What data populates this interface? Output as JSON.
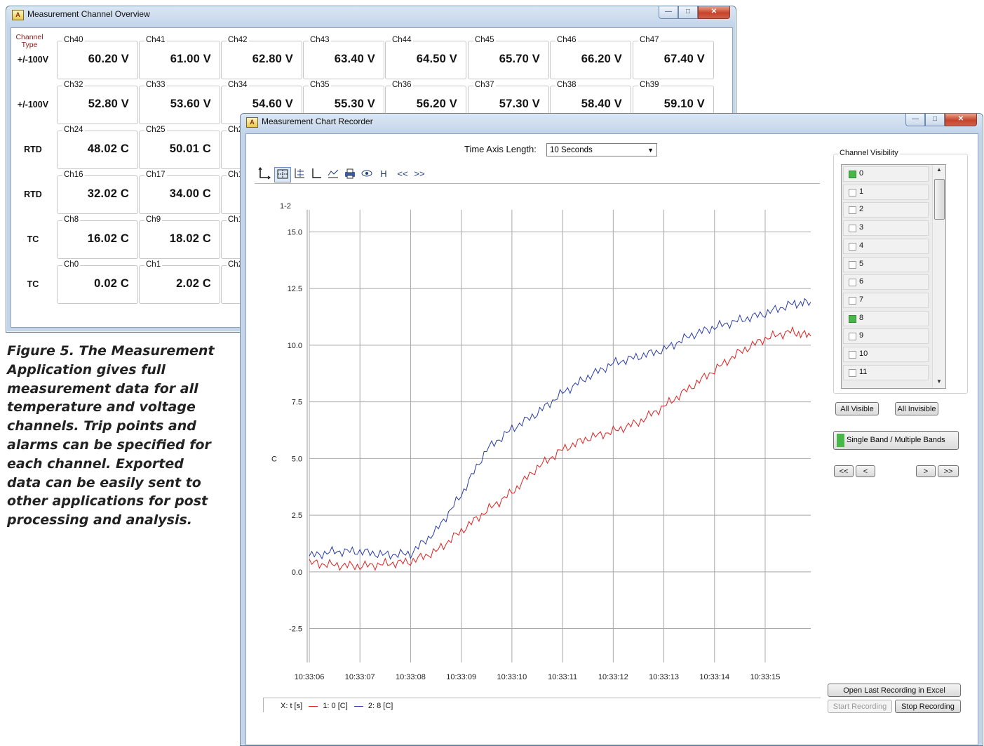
{
  "overview": {
    "title": "Measurement Channel Overview",
    "type_header": "Channel Type",
    "rows": [
      {
        "type": "+/-100V",
        "channels": [
          {
            "label": "Ch40",
            "value": "60.20 V"
          },
          {
            "label": "Ch41",
            "value": "61.00 V"
          },
          {
            "label": "Ch42",
            "value": "62.80 V"
          },
          {
            "label": "Ch43",
            "value": "63.40 V"
          },
          {
            "label": "Ch44",
            "value": "64.50 V"
          },
          {
            "label": "Ch45",
            "value": "65.70 V"
          },
          {
            "label": "Ch46",
            "value": "66.20 V"
          },
          {
            "label": "Ch47",
            "value": "67.40 V"
          }
        ]
      },
      {
        "type": "+/-100V",
        "channels": [
          {
            "label": "Ch32",
            "value": "52.80 V"
          },
          {
            "label": "Ch33",
            "value": "53.60 V"
          },
          {
            "label": "Ch34",
            "value": "54.60 V"
          },
          {
            "label": "Ch35",
            "value": "55.30 V"
          },
          {
            "label": "Ch36",
            "value": "56.20 V"
          },
          {
            "label": "Ch37",
            "value": "57.30 V"
          },
          {
            "label": "Ch38",
            "value": "58.40 V"
          },
          {
            "label": "Ch39",
            "value": "59.10 V"
          }
        ]
      },
      {
        "type": "RTD",
        "channels": [
          {
            "label": "Ch24",
            "value": "48.02 C"
          },
          {
            "label": "Ch25",
            "value": "50.01 C"
          },
          {
            "label": "Ch2",
            "value": ""
          }
        ]
      },
      {
        "type": "RTD",
        "channels": [
          {
            "label": "Ch16",
            "value": "32.02 C"
          },
          {
            "label": "Ch17",
            "value": "34.00 C"
          },
          {
            "label": "Ch1",
            "value": ""
          }
        ]
      },
      {
        "type": "TC",
        "channels": [
          {
            "label": "Ch8",
            "value": "16.02 C"
          },
          {
            "label": "Ch9",
            "value": "18.02 C"
          },
          {
            "label": "Ch1",
            "value": ""
          }
        ]
      },
      {
        "type": "TC",
        "channels": [
          {
            "label": "Ch0",
            "value": "0.02 C"
          },
          {
            "label": "Ch1",
            "value": "2.02 C"
          },
          {
            "label": "Ch2",
            "value": ""
          }
        ]
      }
    ]
  },
  "caption": "Figure 5. The Measurement Application gives full measurement data for all temperature and voltage channels. Trip points and alarms can be specified for each channel. Exported data can be easily sent to other applications for post processing and analysis.",
  "recorder": {
    "title": "Measurement Chart Recorder",
    "time_axis_label": "Time Axis Length:",
    "time_axis_value": "10 Seconds",
    "toolbar": {
      "h_label": "H",
      "prev_label": "<<",
      "next_label": ">>"
    },
    "channel_visibility": {
      "title": "Channel Visibility",
      "items": [
        {
          "num": "0",
          "checked": true
        },
        {
          "num": "1",
          "checked": false
        },
        {
          "num": "2",
          "checked": false
        },
        {
          "num": "3",
          "checked": false
        },
        {
          "num": "4",
          "checked": false
        },
        {
          "num": "5",
          "checked": false
        },
        {
          "num": "6",
          "checked": false
        },
        {
          "num": "7",
          "checked": false
        },
        {
          "num": "8",
          "checked": true
        },
        {
          "num": "9",
          "checked": false
        },
        {
          "num": "10",
          "checked": false
        },
        {
          "num": "11",
          "checked": false
        }
      ]
    },
    "all_visible": "All Visible",
    "all_invisible": "All Invisible",
    "band_button": "Single Band / Multiple Bands",
    "nav": {
      "first": "<<",
      "prev": "<",
      "next": ">",
      "last": ">>"
    },
    "open_excel": "Open Last Recording in Excel",
    "start_recording": "Start Recording",
    "stop_recording": "Stop Recording",
    "legend": {
      "x": "X: t [s]",
      "s1": "1: 0 [C]",
      "s2": "2: 8 [C]"
    }
  },
  "chart_data": {
    "type": "line",
    "band_label": "1-2",
    "ylabel": "C",
    "ylim": [
      -4.0,
      15.6
    ],
    "y_ticks": [
      "15.0",
      "12.5",
      "10.0",
      "7.5",
      "5.0",
      "2.5",
      "0.0",
      "-2.5"
    ],
    "x_ticks": [
      "10:33:06",
      "10:33:07",
      "10:33:08",
      "10:33:09",
      "10:33:10",
      "10:33:11",
      "10:33:12",
      "10:33:13",
      "10:33:14",
      "10:33:15"
    ],
    "xlim": [
      "10:33:06",
      "10:33:15.9"
    ],
    "series": [
      {
        "color": "#2a3da8",
        "x": [
          "10:33:06.0",
          "10:33:06.5",
          "10:33:07.0",
          "10:33:07.5",
          "10:33:08.0",
          "10:33:08.5",
          "10:33:09.0",
          "10:33:09.5",
          "10:33:10.0",
          "10:33:10.5",
          "10:33:11.0",
          "10:33:11.5",
          "10:33:12.0",
          "10:33:12.5",
          "10:33:13.0",
          "10:33:13.5",
          "10:33:14.0",
          "10:33:14.5",
          "10:33:15.0",
          "10:33:15.5",
          "10:33:15.9"
        ],
        "y": [
          0.7,
          0.9,
          0.9,
          0.75,
          0.8,
          1.8,
          3.4,
          5.4,
          6.3,
          7.0,
          7.9,
          8.6,
          9.2,
          9.5,
          9.8,
          10.4,
          10.8,
          11.1,
          11.4,
          11.8,
          11.9
        ]
      },
      {
        "color": "#e02020",
        "x": [
          "10:33:06.0",
          "10:33:06.5",
          "10:33:07.0",
          "10:33:07.5",
          "10:33:08.0",
          "10:33:08.5",
          "10:33:09.0",
          "10:33:09.5",
          "10:33:10.0",
          "10:33:10.5",
          "10:33:11.0",
          "10:33:11.5",
          "10:33:12.0",
          "10:33:12.5",
          "10:33:13.0",
          "10:33:13.5",
          "10:33:14.0",
          "10:33:14.5",
          "10:33:15.0",
          "10:33:15.5",
          "10:33:15.9"
        ],
        "y": [
          0.4,
          0.3,
          0.25,
          0.35,
          0.45,
          0.9,
          1.8,
          2.7,
          3.5,
          4.6,
          5.4,
          5.9,
          6.2,
          6.6,
          7.3,
          8.1,
          8.9,
          9.7,
          10.3,
          10.6,
          10.4
        ]
      }
    ]
  }
}
